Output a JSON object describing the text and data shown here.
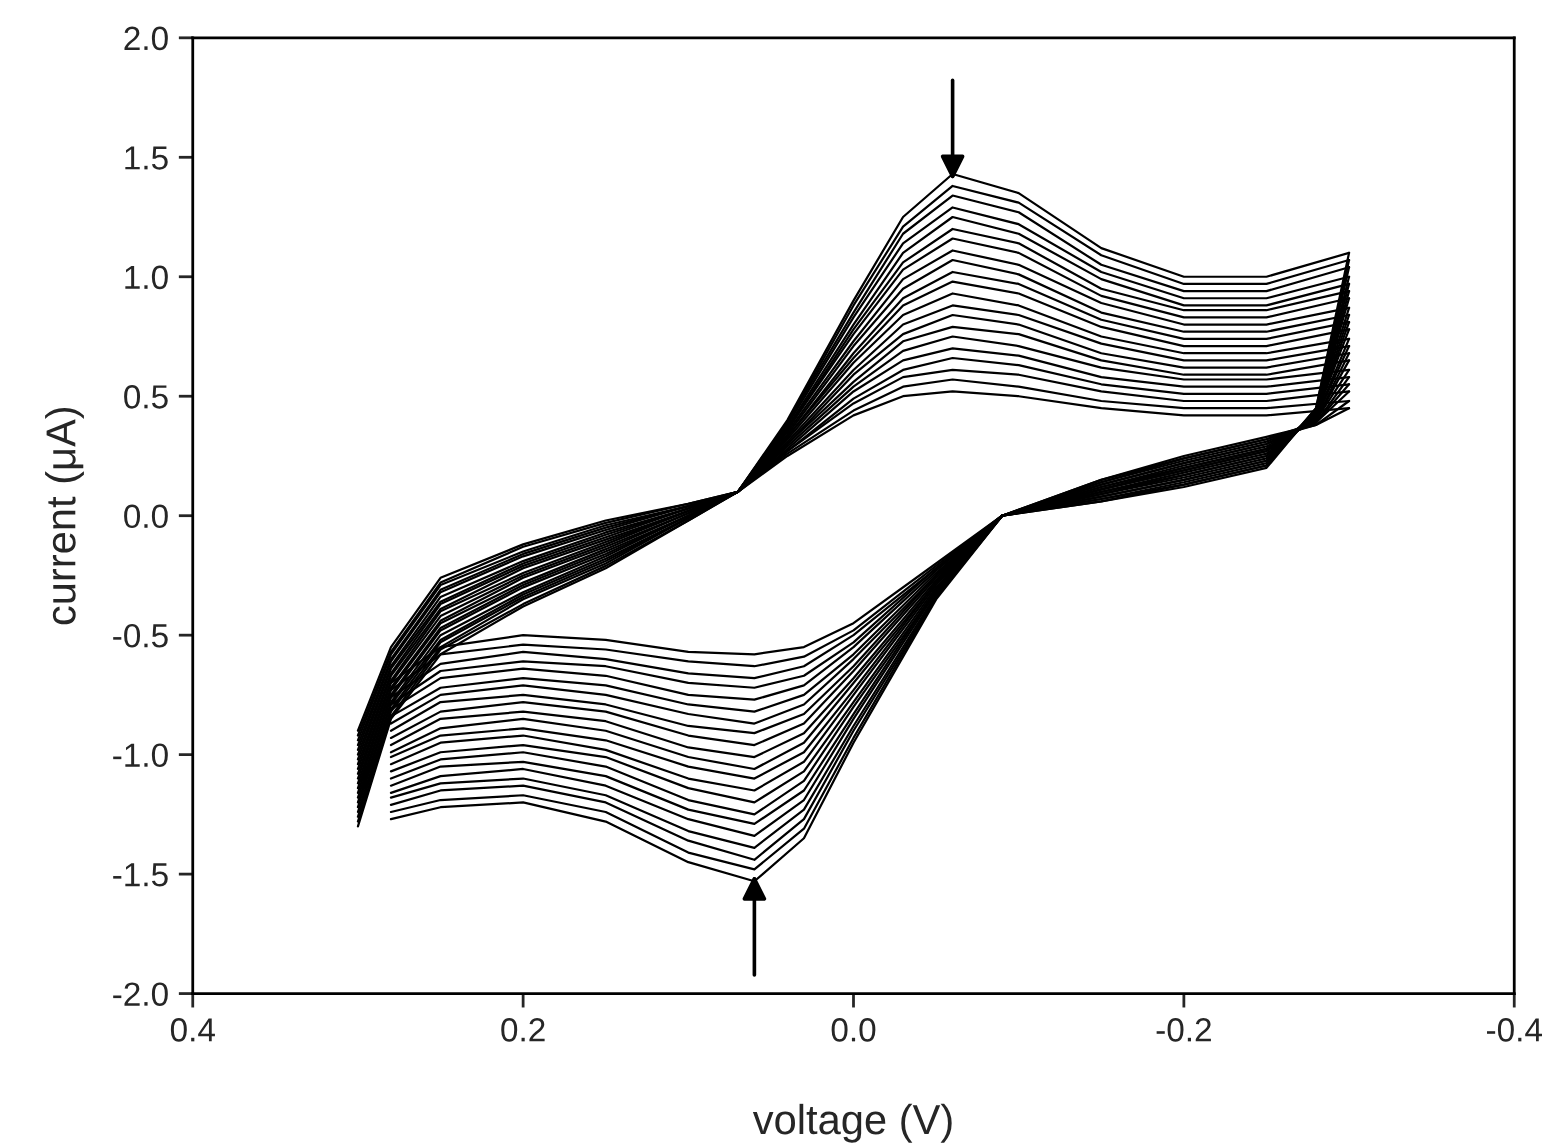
{
  "chart_data": {
    "type": "line",
    "xlabel": "voltage (V)",
    "ylabel": "current (μA)",
    "xlim": [
      0.4,
      -0.4
    ],
    "xticks": [
      0.4,
      0.2,
      {
        "value": 0,
        "label": "0.0"
      },
      -0.2,
      -0.4
    ],
    "ylim": [
      -2.0,
      2.0
    ],
    "yticks": [
      {
        "value": -2,
        "label": "-2.0"
      },
      -1.5,
      {
        "value": -1,
        "label": "-1.0"
      },
      -0.5,
      {
        "value": 0,
        "label": "0.0"
      },
      0.5,
      {
        "value": 1,
        "label": "1.0"
      },
      1.5,
      {
        "value": 2,
        "label": "2.0"
      }
    ],
    "grid": false,
    "x": [
      0.3,
      0.28,
      0.25,
      0.2,
      0.15,
      0.1,
      0.07,
      0.04,
      0.0,
      -0.03,
      -0.06,
      -0.1,
      -0.15,
      -0.2,
      -0.25,
      -0.3
    ],
    "series": [
      {
        "color": "#000000",
        "values": [
          -1.3,
          -0.85,
          -0.58,
          -0.38,
          -0.22,
          -0.02,
          0.1,
          0.4,
          0.9,
          1.25,
          1.43,
          1.35,
          1.12,
          1.0,
          1.0,
          1.1
        ]
      },
      {
        "color": "#000000",
        "x": [
          0.28,
          0.25,
          0.2,
          0.15,
          0.1,
          0.06,
          0.03,
          0.0,
          -0.05,
          -0.09,
          -0.15,
          -0.2,
          -0.25,
          -0.28,
          -0.3
        ],
        "values": [
          -1.27,
          -1.22,
          -1.2,
          -1.28,
          -1.45,
          -1.53,
          -1.35,
          -0.95,
          -0.35,
          0.0,
          0.06,
          0.12,
          0.2,
          0.45,
          1.1
        ]
      },
      {
        "color": "#000000",
        "values": [
          -1.28,
          -0.84,
          -0.56,
          -0.37,
          -0.21,
          -0.02,
          0.1,
          0.39,
          0.88,
          1.21,
          1.38,
          1.31,
          1.09,
          0.97,
          0.97,
          1.07
        ]
      },
      {
        "color": "#000000",
        "x": [
          0.28,
          0.25,
          0.2,
          0.15,
          0.1,
          0.06,
          0.03,
          0.0,
          -0.05,
          -0.09,
          -0.15,
          -0.2,
          -0.25,
          -0.28,
          -0.3
        ],
        "values": [
          -1.24,
          -1.19,
          -1.17,
          -1.24,
          -1.41,
          -1.48,
          -1.31,
          -0.93,
          -0.34,
          0.0,
          0.06,
          0.13,
          0.21,
          0.45,
          1.07
        ]
      },
      {
        "color": "#000000",
        "values": [
          -1.26,
          -0.82,
          -0.55,
          -0.35,
          -0.2,
          -0.01,
          0.1,
          0.39,
          0.85,
          1.18,
          1.34,
          1.27,
          1.05,
          0.94,
          0.94,
          1.04
        ]
      },
      {
        "color": "#000000",
        "x": [
          0.28,
          0.25,
          0.2,
          0.15,
          0.1,
          0.06,
          0.03,
          0.0,
          -0.05,
          -0.09,
          -0.15,
          -0.2,
          -0.25,
          -0.28,
          -0.3
        ],
        "values": [
          -1.21,
          -1.15,
          -1.13,
          -1.2,
          -1.36,
          -1.44,
          -1.27,
          -0.9,
          -0.34,
          0.0,
          0.07,
          0.13,
          0.21,
          0.44,
          1.04
        ]
      },
      {
        "color": "#000000",
        "values": [
          -1.24,
          -0.81,
          -0.53,
          -0.34,
          -0.19,
          -0.01,
          0.1,
          0.38,
          0.83,
          1.14,
          1.29,
          1.22,
          1.02,
          0.91,
          0.91,
          1.0
        ]
      },
      {
        "color": "#000000",
        "x": [
          0.28,
          0.25,
          0.2,
          0.15,
          0.1,
          0.06,
          0.03,
          0.0,
          -0.05,
          -0.09,
          -0.15,
          -0.2,
          -0.25,
          -0.28,
          -0.3
        ],
        "values": [
          -1.18,
          -1.12,
          -1.1,
          -1.17,
          -1.32,
          -1.39,
          -1.23,
          -0.88,
          -0.33,
          0.0,
          0.07,
          0.14,
          0.22,
          0.44,
          1.0
        ]
      },
      {
        "color": "#000000",
        "values": [
          -1.22,
          -0.79,
          -0.52,
          -0.33,
          -0.18,
          -0.01,
          0.1,
          0.37,
          0.8,
          1.1,
          1.25,
          1.18,
          0.99,
          0.88,
          0.88,
          0.97
        ]
      },
      {
        "color": "#000000",
        "x": [
          0.28,
          0.25,
          0.2,
          0.15,
          0.1,
          0.06,
          0.03,
          0.0,
          -0.05,
          -0.09,
          -0.15,
          -0.2,
          -0.25,
          -0.28,
          -0.3
        ],
        "values": [
          -1.16,
          -1.09,
          -1.06,
          -1.13,
          -1.27,
          -1.34,
          -1.19,
          -0.85,
          -0.32,
          0.0,
          0.08,
          0.15,
          0.23,
          0.44,
          0.97
        ]
      },
      {
        "color": "#000000",
        "values": [
          -1.2,
          -0.78,
          -0.5,
          -0.32,
          -0.17,
          0.0,
          0.1,
          0.36,
          0.78,
          1.06,
          1.2,
          1.14,
          0.95,
          0.86,
          0.86,
          0.94
        ]
      },
      {
        "color": "#000000",
        "x": [
          0.28,
          0.25,
          0.2,
          0.15,
          0.1,
          0.06,
          0.03,
          0.0,
          -0.05,
          -0.09,
          -0.15,
          -0.2,
          -0.25,
          -0.28,
          -0.3
        ],
        "values": [
          -1.13,
          -1.05,
          -1.03,
          -1.09,
          -1.23,
          -1.29,
          -1.15,
          -0.83,
          -0.31,
          0.0,
          0.08,
          0.15,
          0.23,
          0.43,
          0.94
        ]
      },
      {
        "color": "#000000",
        "values": [
          -1.18,
          -0.76,
          -0.48,
          -0.3,
          -0.16,
          0.0,
          0.1,
          0.36,
          0.76,
          1.03,
          1.16,
          1.1,
          0.92,
          0.83,
          0.83,
          0.91
        ]
      },
      {
        "color": "#000000",
        "x": [
          0.28,
          0.25,
          0.2,
          0.15,
          0.1,
          0.06,
          0.03,
          0.0,
          -0.05,
          -0.09,
          -0.15,
          -0.2,
          -0.25,
          -0.28,
          -0.3
        ],
        "values": [
          -1.1,
          -1.02,
          -0.99,
          -1.05,
          -1.19,
          -1.25,
          -1.11,
          -0.8,
          -0.31,
          0.0,
          0.09,
          0.16,
          0.24,
          0.43,
          0.91
        ]
      },
      {
        "color": "#000000",
        "values": [
          -1.16,
          -0.75,
          -0.47,
          -0.29,
          -0.15,
          0.0,
          0.1,
          0.35,
          0.73,
          0.99,
          1.11,
          1.05,
          0.89,
          0.8,
          0.8,
          0.87
        ]
      },
      {
        "color": "#000000",
        "x": [
          0.28,
          0.25,
          0.2,
          0.15,
          0.1,
          0.06,
          0.03,
          0.0,
          -0.05,
          -0.09,
          -0.15,
          -0.2,
          -0.25,
          -0.28,
          -0.3
        ],
        "values": [
          -1.07,
          -0.99,
          -0.96,
          -1.01,
          -1.14,
          -1.2,
          -1.07,
          -0.78,
          -0.3,
          0.0,
          0.09,
          0.17,
          0.25,
          0.43,
          0.87
        ]
      },
      {
        "color": "#000000",
        "values": [
          -1.14,
          -0.73,
          -0.45,
          -0.28,
          -0.14,
          0.01,
          0.1,
          0.34,
          0.71,
          0.95,
          1.07,
          1.01,
          0.85,
          0.77,
          0.77,
          0.84
        ]
      },
      {
        "color": "#000000",
        "x": [
          0.28,
          0.25,
          0.2,
          0.15,
          0.1,
          0.06,
          0.03,
          0.0,
          -0.05,
          -0.09,
          -0.15,
          -0.2,
          -0.25,
          -0.28,
          -0.3
        ],
        "values": [
          -1.04,
          -0.95,
          -0.92,
          -0.98,
          -1.1,
          -1.15,
          -1.03,
          -0.75,
          -0.29,
          0.0,
          0.1,
          0.17,
          0.25,
          0.42,
          0.84
        ]
      },
      {
        "color": "#000000",
        "values": [
          -1.12,
          -0.72,
          -0.44,
          -0.26,
          -0.13,
          0.01,
          0.1,
          0.33,
          0.68,
          0.91,
          1.02,
          0.97,
          0.82,
          0.74,
          0.74,
          0.81
        ]
      },
      {
        "color": "#000000",
        "x": [
          0.28,
          0.25,
          0.2,
          0.15,
          0.1,
          0.06,
          0.03,
          0.0,
          -0.05,
          -0.09,
          -0.15,
          -0.2,
          -0.25,
          -0.28,
          -0.3
        ],
        "values": [
          -1.01,
          -0.92,
          -0.89,
          -0.94,
          -1.05,
          -1.1,
          -0.99,
          -0.73,
          -0.28,
          0.0,
          0.1,
          0.18,
          0.26,
          0.42,
          0.81
        ]
      },
      {
        "color": "#000000",
        "values": [
          -1.1,
          -0.7,
          -0.42,
          -0.25,
          -0.12,
          0.02,
          0.1,
          0.33,
          0.66,
          0.88,
          0.98,
          0.93,
          0.79,
          0.71,
          0.71,
          0.78
        ]
      },
      {
        "color": "#000000",
        "x": [
          0.28,
          0.25,
          0.2,
          0.15,
          0.1,
          0.06,
          0.03,
          0.0,
          -0.05,
          -0.09,
          -0.15,
          -0.2,
          -0.25,
          -0.28,
          -0.3
        ],
        "values": [
          -0.99,
          -0.89,
          -0.85,
          -0.9,
          -1.01,
          -1.06,
          -0.95,
          -0.7,
          -0.28,
          0.0,
          0.11,
          0.19,
          0.27,
          0.42,
          0.78
        ]
      },
      {
        "color": "#000000",
        "values": [
          -1.08,
          -0.69,
          -0.4,
          -0.24,
          -0.11,
          0.02,
          0.1,
          0.32,
          0.64,
          0.84,
          0.93,
          0.88,
          0.75,
          0.68,
          0.68,
          0.74
        ]
      },
      {
        "color": "#000000",
        "x": [
          0.28,
          0.25,
          0.2,
          0.15,
          0.1,
          0.06,
          0.03,
          0.0,
          -0.05,
          -0.09,
          -0.15,
          -0.2,
          -0.25,
          -0.28,
          -0.3
        ],
        "values": [
          -0.96,
          -0.85,
          -0.82,
          -0.86,
          -0.97,
          -1.01,
          -0.91,
          -0.68,
          -0.27,
          0.0,
          0.11,
          0.19,
          0.27,
          0.41,
          0.74
        ]
      },
      {
        "color": "#000000",
        "values": [
          -1.06,
          -0.67,
          -0.39,
          -0.22,
          -0.1,
          0.02,
          0.1,
          0.31,
          0.61,
          0.8,
          0.88,
          0.84,
          0.72,
          0.65,
          0.65,
          0.71
        ]
      },
      {
        "color": "#000000",
        "x": [
          0.28,
          0.25,
          0.2,
          0.15,
          0.1,
          0.06,
          0.03,
          0.0,
          -0.05,
          -0.09,
          -0.15,
          -0.2,
          -0.25,
          -0.28,
          -0.3
        ],
        "values": [
          -0.93,
          -0.82,
          -0.78,
          -0.82,
          -0.92,
          -0.96,
          -0.87,
          -0.65,
          -0.26,
          0.0,
          0.11,
          0.2,
          0.28,
          0.41,
          0.71
        ]
      },
      {
        "color": "#000000",
        "values": [
          -1.04,
          -0.66,
          -0.37,
          -0.21,
          -0.09,
          0.03,
          0.1,
          0.3,
          0.59,
          0.76,
          0.84,
          0.8,
          0.68,
          0.62,
          0.62,
          0.68
        ]
      },
      {
        "color": "#000000",
        "x": [
          0.28,
          0.25,
          0.2,
          0.15,
          0.1,
          0.06,
          0.03,
          0.0,
          -0.05,
          -0.09,
          -0.15,
          -0.2,
          -0.25,
          -0.28,
          -0.3
        ],
        "values": [
          -0.9,
          -0.78,
          -0.75,
          -0.79,
          -0.88,
          -0.91,
          -0.83,
          -0.63,
          -0.25,
          0.0,
          0.12,
          0.2,
          0.28,
          0.4,
          0.68
        ]
      },
      {
        "color": "#000000",
        "values": [
          -1.02,
          -0.64,
          -0.36,
          -0.2,
          -0.08,
          0.03,
          0.1,
          0.3,
          0.56,
          0.73,
          0.79,
          0.76,
          0.65,
          0.59,
          0.59,
          0.65
        ]
      },
      {
        "color": "#000000",
        "x": [
          0.28,
          0.25,
          0.2,
          0.15,
          0.1,
          0.06,
          0.03,
          0.0,
          -0.05,
          -0.09,
          -0.15,
          -0.2,
          -0.25,
          -0.28,
          -0.3
        ],
        "values": [
          -0.87,
          -0.75,
          -0.71,
          -0.75,
          -0.83,
          -0.87,
          -0.79,
          -0.6,
          -0.25,
          0.0,
          0.12,
          0.21,
          0.29,
          0.4,
          0.65
        ]
      },
      {
        "color": "#000000",
        "values": [
          -1.0,
          -0.63,
          -0.34,
          -0.19,
          -0.07,
          0.03,
          0.1,
          0.29,
          0.54,
          0.69,
          0.75,
          0.71,
          0.62,
          0.57,
          0.57,
          0.61
        ]
      },
      {
        "color": "#000000",
        "x": [
          0.28,
          0.25,
          0.2,
          0.15,
          0.1,
          0.06,
          0.03,
          0.0,
          -0.05,
          -0.09,
          -0.15,
          -0.2,
          -0.25,
          -0.28,
          -0.3
        ],
        "values": [
          -0.84,
          -0.72,
          -0.68,
          -0.71,
          -0.79,
          -0.82,
          -0.75,
          -0.58,
          -0.24,
          0.0,
          0.13,
          0.22,
          0.3,
          0.4,
          0.61
        ]
      },
      {
        "color": "#000000",
        "values": [
          -0.98,
          -0.61,
          -0.32,
          -0.17,
          -0.06,
          0.04,
          0.1,
          0.28,
          0.52,
          0.65,
          0.7,
          0.67,
          0.58,
          0.54,
          0.54,
          0.58
        ]
      },
      {
        "color": "#000000",
        "x": [
          0.28,
          0.25,
          0.2,
          0.15,
          0.1,
          0.06,
          0.03,
          0.0,
          -0.05,
          -0.09,
          -0.15,
          -0.2,
          -0.25,
          -0.28,
          -0.3
        ],
        "values": [
          -0.81,
          -0.68,
          -0.64,
          -0.67,
          -0.75,
          -0.77,
          -0.71,
          -0.55,
          -0.23,
          0.0,
          0.13,
          0.22,
          0.3,
          0.39,
          0.58
        ]
      },
      {
        "color": "#000000",
        "values": [
          -0.96,
          -0.6,
          -0.31,
          -0.16,
          -0.05,
          0.04,
          0.1,
          0.27,
          0.49,
          0.61,
          0.66,
          0.63,
          0.55,
          0.51,
          0.51,
          0.55
        ]
      },
      {
        "color": "#000000",
        "x": [
          0.28,
          0.25,
          0.2,
          0.15,
          0.1,
          0.06,
          0.03,
          0.0,
          -0.05,
          -0.09,
          -0.15,
          -0.2,
          -0.25,
          -0.28,
          -0.3
        ],
        "values": [
          -0.79,
          -0.65,
          -0.61,
          -0.63,
          -0.7,
          -0.72,
          -0.67,
          -0.53,
          -0.22,
          0.0,
          0.14,
          0.23,
          0.31,
          0.39,
          0.55
        ]
      },
      {
        "color": "#000000",
        "values": [
          -0.94,
          -0.58,
          -0.29,
          -0.15,
          -0.04,
          0.04,
          0.1,
          0.27,
          0.47,
          0.58,
          0.61,
          0.59,
          0.52,
          0.48,
          0.48,
          0.52
        ]
      },
      {
        "color": "#000000",
        "x": [
          0.28,
          0.25,
          0.2,
          0.15,
          0.1,
          0.06,
          0.03,
          0.0,
          -0.05,
          -0.09,
          -0.15,
          -0.2,
          -0.25,
          -0.28,
          -0.3
        ],
        "values": [
          -0.76,
          -0.62,
          -0.57,
          -0.6,
          -0.66,
          -0.68,
          -0.63,
          -0.5,
          -0.22,
          0.0,
          0.14,
          0.24,
          0.32,
          0.39,
          0.52
        ]
      },
      {
        "color": "#000000",
        "values": [
          -0.92,
          -0.57,
          -0.28,
          -0.13,
          -0.03,
          0.05,
          0.1,
          0.26,
          0.44,
          0.54,
          0.57,
          0.54,
          0.48,
          0.45,
          0.45,
          0.48
        ]
      },
      {
        "color": "#000000",
        "x": [
          0.28,
          0.25,
          0.2,
          0.15,
          0.1,
          0.06,
          0.03,
          0.0,
          -0.05,
          -0.09,
          -0.15,
          -0.2,
          -0.25,
          -0.28,
          -0.3
        ],
        "values": [
          -0.73,
          -0.58,
          -0.54,
          -0.56,
          -0.61,
          -0.63,
          -0.59,
          -0.48,
          -0.21,
          0.0,
          0.15,
          0.24,
          0.32,
          0.38,
          0.48
        ]
      },
      {
        "color": "#000000",
        "values": [
          -0.9,
          -0.55,
          -0.26,
          -0.12,
          -0.02,
          0.05,
          0.1,
          0.25,
          0.42,
          0.5,
          0.52,
          0.5,
          0.45,
          0.42,
          0.42,
          0.45
        ]
      },
      {
        "color": "#000000",
        "x": [
          0.28,
          0.25,
          0.2,
          0.15,
          0.1,
          0.06,
          0.03,
          0.0,
          -0.05,
          -0.09,
          -0.15,
          -0.2,
          -0.25,
          -0.28,
          -0.3
        ],
        "values": [
          -0.7,
          -0.55,
          -0.5,
          -0.52,
          -0.57,
          -0.58,
          -0.55,
          -0.45,
          -0.2,
          0.0,
          0.15,
          0.25,
          0.33,
          0.38,
          0.45
        ]
      }
    ]
  }
}
